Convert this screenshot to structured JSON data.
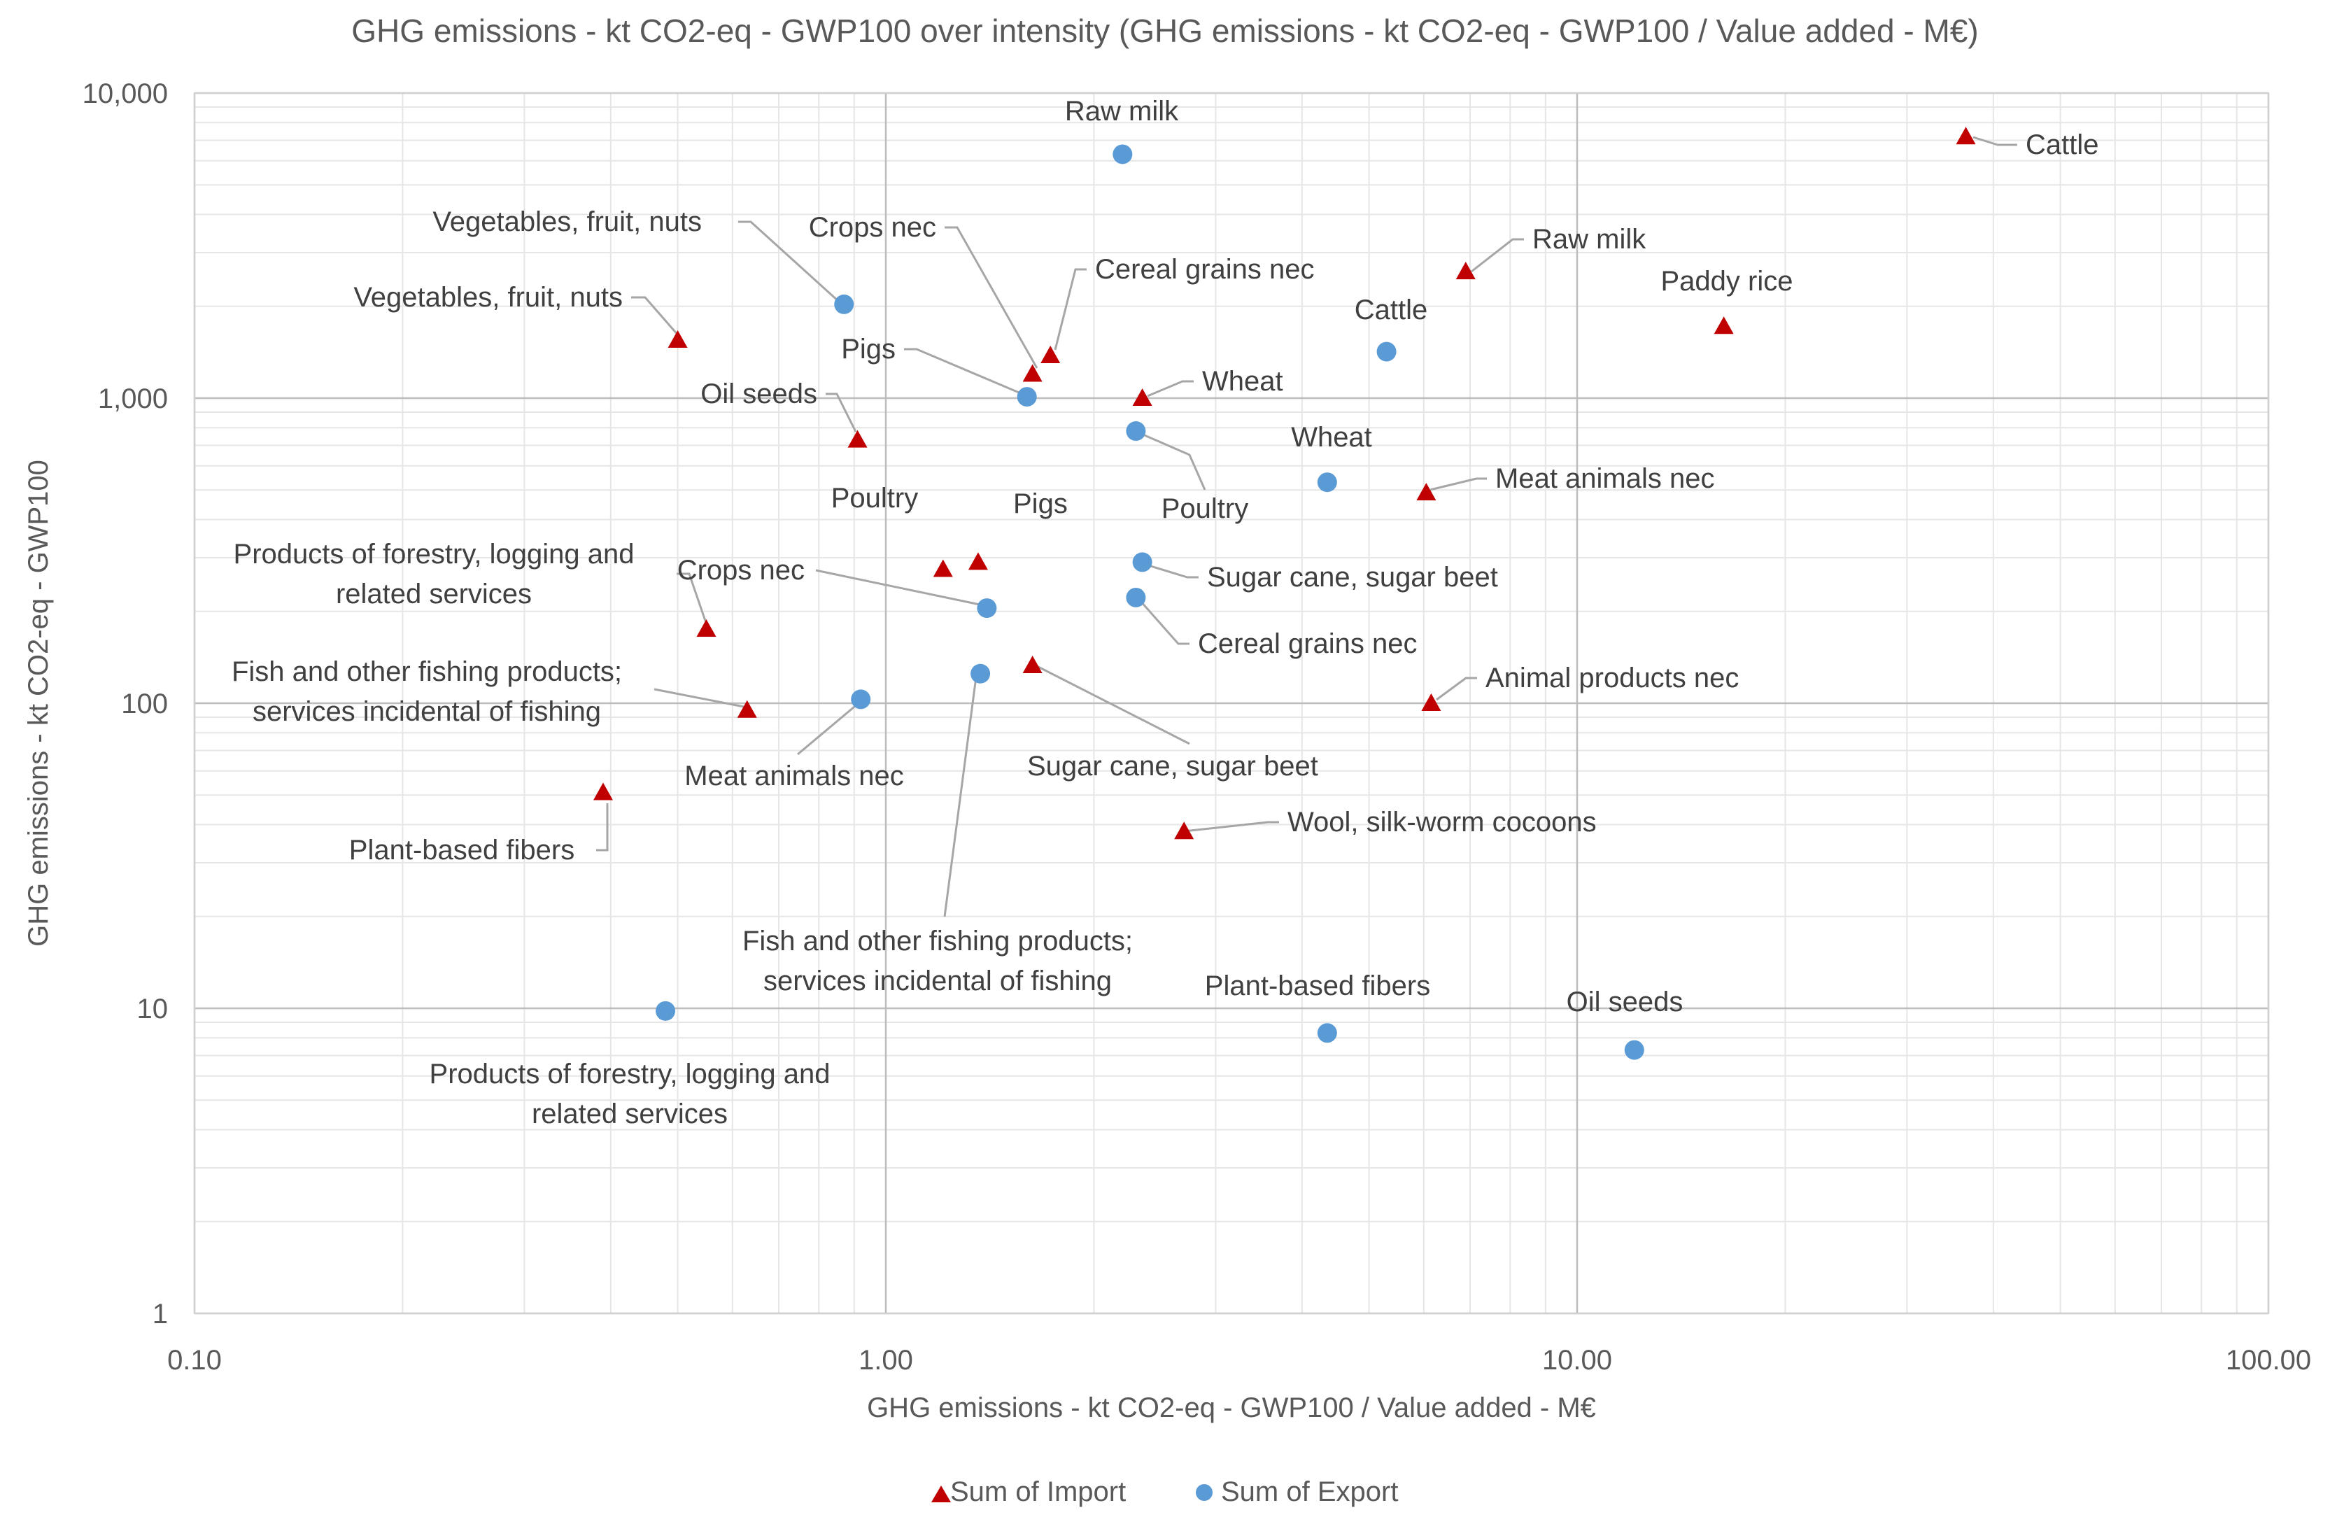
{
  "chart_data": {
    "type": "scatter",
    "title": "GHG emissions - kt CO2-eq - GWP100 over intensity (GHG emissions - kt CO2-eq - GWP100 / Value added - M€)",
    "xlabel": "GHG emissions - kt CO2-eq - GWP100 / Value added - M€",
    "ylabel": "GHG emissions - kt CO2-eq - GWP100",
    "xscale": "log",
    "yscale": "log",
    "xlim": [
      0.1,
      100
    ],
    "ylim": [
      1,
      10000
    ],
    "x_ticks": [
      0.1,
      1,
      10,
      100
    ],
    "x_tick_labels": [
      "0.10",
      "1.00",
      "10.00",
      "100.00"
    ],
    "y_ticks": [
      1,
      10,
      100,
      1000,
      10000
    ],
    "y_tick_labels": [
      "1",
      "10",
      "100",
      "1,000",
      "10,000"
    ],
    "grid": true,
    "legend_position": "bottom",
    "series": [
      {
        "name": "Sum of Import",
        "marker": "triangle",
        "color": "#c00000",
        "points": [
          {
            "label": "Cattle",
            "x": 36.5,
            "y": 7200
          },
          {
            "label": "Raw milk",
            "x": 6.9,
            "y": 2600
          },
          {
            "label": "Paddy rice",
            "x": 16.3,
            "y": 1720
          },
          {
            "label": "Vegetables, fruit, nuts",
            "x": 0.5,
            "y": 1550
          },
          {
            "label": "Cereal grains nec",
            "x": 1.73,
            "y": 1380
          },
          {
            "label": "Crops nec",
            "x": 1.63,
            "y": 1200
          },
          {
            "label": "Wheat",
            "x": 2.35,
            "y": 1000
          },
          {
            "label": "Oil seeds",
            "x": 0.91,
            "y": 730
          },
          {
            "label": "Meat animals nec",
            "x": 6.05,
            "y": 490
          },
          {
            "label": "Pigs",
            "x": 1.36,
            "y": 290
          },
          {
            "label": "Poultry",
            "x": 1.21,
            "y": 275
          },
          {
            "label": "Products of forestry, logging and related services",
            "x": 0.55,
            "y": 175
          },
          {
            "label": "Sugar cane, sugar beet",
            "x": 1.63,
            "y": 133
          },
          {
            "label": "Animal products nec",
            "x": 6.15,
            "y": 100
          },
          {
            "label": "Fish and other fishing products; services incidental of fishing",
            "x": 0.63,
            "y": 95
          },
          {
            "label": "Plant-based fibers",
            "x": 0.39,
            "y": 51
          },
          {
            "label": "Wool, silk-worm cocoons",
            "x": 2.7,
            "y": 38
          }
        ]
      },
      {
        "name": "Sum of Export",
        "marker": "circle",
        "color": "#5b9bd5",
        "points": [
          {
            "label": "Raw milk",
            "x": 2.2,
            "y": 6300
          },
          {
            "label": "Vegetables, fruit, nuts",
            "x": 0.87,
            "y": 2030
          },
          {
            "label": "Cattle",
            "x": 5.3,
            "y": 1420
          },
          {
            "label": "Pigs",
            "x": 1.6,
            "y": 1010
          },
          {
            "label": "Poultry",
            "x": 2.3,
            "y": 780
          },
          {
            "label": "Wheat",
            "x": 4.35,
            "y": 530
          },
          {
            "label": "Sugar cane, sugar beet",
            "x": 2.35,
            "y": 290
          },
          {
            "label": "Cereal grains nec",
            "x": 2.3,
            "y": 222
          },
          {
            "label": "Crops nec",
            "x": 1.4,
            "y": 205
          },
          {
            "label": "Fish and other fishing products; services incidental of fishing",
            "x": 1.37,
            "y": 125
          },
          {
            "label": "Meat animals nec",
            "x": 0.92,
            "y": 103
          },
          {
            "label": "Products of forestry, logging and related services",
            "x": 0.48,
            "y": 9.8
          },
          {
            "label": "Plant-based fibers",
            "x": 4.35,
            "y": 8.3
          },
          {
            "label": "Oil seeds",
            "x": 12.1,
            "y": 7.3
          }
        ]
      }
    ]
  }
}
